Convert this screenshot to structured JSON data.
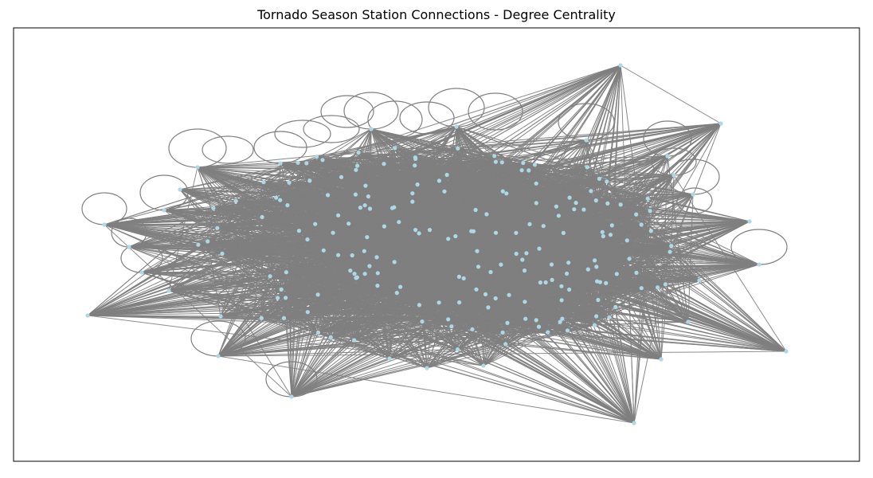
{
  "title": "Tornado Season Station Connections - Degree Centrality",
  "colors": {
    "node": "#add8e6",
    "edge": "#808080",
    "frame": "#000000",
    "background": "#ffffff"
  },
  "graph": {
    "type": "network",
    "layout": "spring",
    "node_shape": "circle",
    "self_loops": true,
    "edge_density": "very high"
  }
}
